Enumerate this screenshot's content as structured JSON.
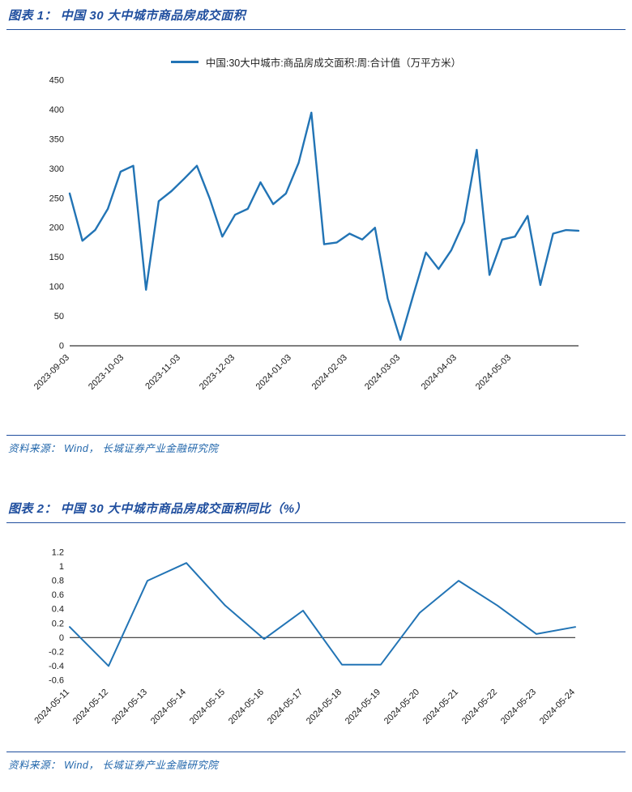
{
  "colors": {
    "title_blue": "#1f4e9e",
    "line_blue": "#2274b5",
    "source_blue": "#2166ab",
    "axis_black": "#333333"
  },
  "figure1": {
    "title": "图表 1： 中国 30 大中城市商品房成交面积",
    "legend": "中国:30大中城市:商品房成交面积:周:合计值（万平方米）",
    "source": "资料来源： Wind， 长城证券产业金融研究院"
  },
  "figure2": {
    "title": "图表 2： 中国 30 大中城市商品房成交面积同比（%）",
    "source": "资料来源： Wind， 长城证券产业金融研究院"
  },
  "chart_data": [
    {
      "type": "line",
      "title": "中国 30 大中城市商品房成交面积",
      "series_name": "中国:30大中城市:商品房成交面积:周:合计值（万平方米）",
      "ylabel": "万平方米",
      "frequency": "weekly",
      "grid": false,
      "legend_position": "top-center",
      "ylim": [
        0,
        450
      ],
      "yticks": [
        0,
        50,
        100,
        150,
        200,
        250,
        300,
        350,
        400,
        450
      ],
      "values": [
        258,
        178,
        196,
        232,
        295,
        305,
        95,
        245,
        262,
        283,
        305,
        250,
        185,
        222,
        232,
        277,
        240,
        258,
        310,
        395,
        172,
        175,
        190,
        180,
        200,
        80,
        10,
        85,
        158,
        130,
        162,
        210,
        332,
        120,
        180,
        185,
        220,
        103,
        190,
        196,
        195
      ],
      "xticks": [
        {
          "label": "2023-09-03",
          "pos": 0.0
        },
        {
          "label": "2023-10-03",
          "pos": 0.107
        },
        {
          "label": "2023-11-03",
          "pos": 0.218
        },
        {
          "label": "2023-12-03",
          "pos": 0.325
        },
        {
          "label": "2024-01-03",
          "pos": 0.436
        },
        {
          "label": "2024-02-03",
          "pos": 0.546
        },
        {
          "label": "2024-03-03",
          "pos": 0.65
        },
        {
          "label": "2024-04-03",
          "pos": 0.761
        },
        {
          "label": "2024-05-03",
          "pos": 0.868
        }
      ]
    },
    {
      "type": "line",
      "title": "中国 30 大中城市商品房成交面积同比（%）",
      "ylabel": "%",
      "frequency": "daily",
      "grid": false,
      "ylim": [
        -0.6,
        1.2
      ],
      "yticks": [
        1.2,
        1,
        0.8,
        0.6,
        0.4,
        0.2,
        0,
        -0.2,
        -0.4,
        -0.6
      ],
      "categories": [
        "2024-05-11",
        "2024-05-12",
        "2024-05-13",
        "2024-05-14",
        "2024-05-15",
        "2024-05-16",
        "2024-05-17",
        "2024-05-18",
        "2024-05-19",
        "2024-05-20",
        "2024-05-21",
        "2024-05-22",
        "2024-05-23",
        "2024-05-24"
      ],
      "values": [
        0.15,
        -0.4,
        0.8,
        1.05,
        0.45,
        -0.02,
        0.38,
        -0.38,
        -0.38,
        0.35,
        0.8,
        0.45,
        0.05,
        0.15
      ]
    }
  ]
}
